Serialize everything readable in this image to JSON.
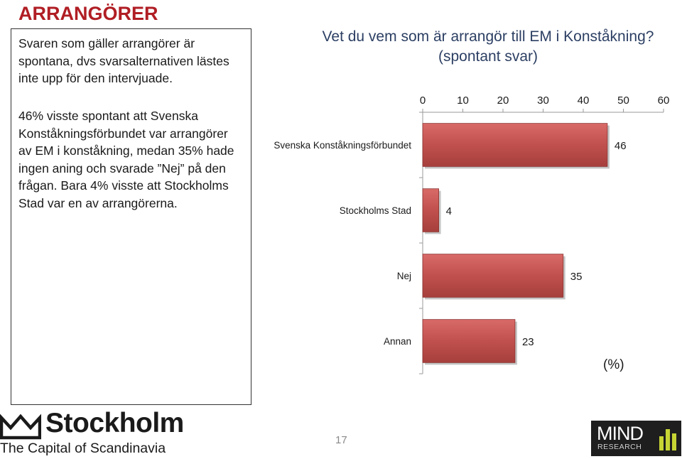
{
  "page": {
    "title": "ARRANGÖRER",
    "page_number": "17"
  },
  "text_panel": {
    "paragraph1": "Svaren som gäller arrangörer är spontana, dvs svarsalternativen lästes inte upp för den intervjuade.",
    "paragraph2": "46% visste spontant att Svenska Konståkningsförbundet var arrangörer av EM i konståkning, medan 35% hade ingen aning och svarade ”Nej” på den frågan. Bara 4% visste att Stockholms Stad var en av arrangörerna."
  },
  "chart_data": {
    "type": "bar",
    "orientation": "horizontal",
    "title_line1": "Vet du vem som är arrangör till EM i Konståkning?",
    "title_line2": "(spontant svar)",
    "categories": [
      "Svenska Konståkningsförbundet",
      "Stockholms Stad",
      "Nej",
      "Annan"
    ],
    "values": [
      46,
      4,
      35,
      23
    ],
    "value_labels": [
      "46",
      "4",
      "35",
      "23"
    ],
    "xlim": [
      0,
      60
    ],
    "xticks": [
      "0",
      "10",
      "20",
      "30",
      "40",
      "50",
      "60"
    ],
    "axis_position": "top",
    "unit_label": "(%)",
    "grid": false,
    "bar_color": "#c0504d"
  },
  "logos": {
    "left_wordmark": "Stockholm",
    "left_tagline": "The Capital of Scandinavia",
    "right_wordmark": "MIND",
    "right_sub": "RESEARCH"
  }
}
